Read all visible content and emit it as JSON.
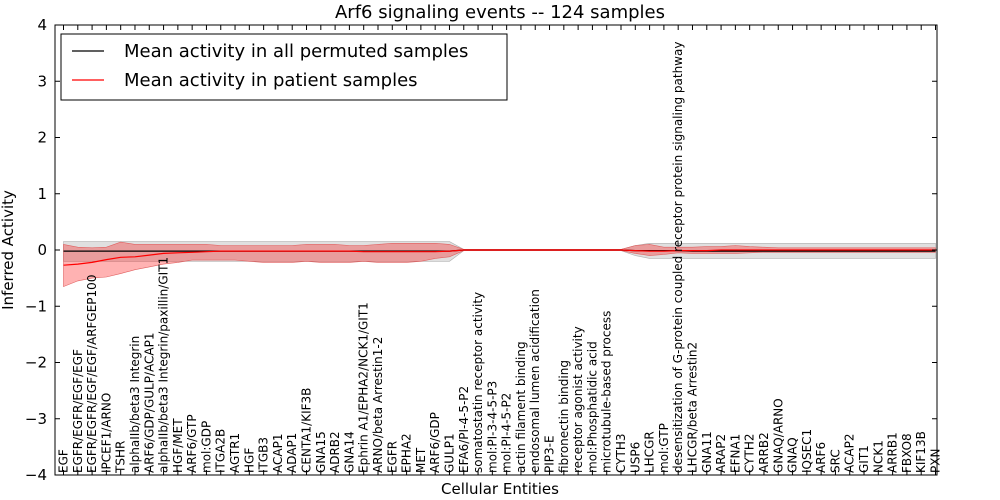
{
  "chart_data": {
    "type": "line",
    "title": "Arf6 signaling events -- 124 samples",
    "xlabel": "Cellular Entities",
    "ylabel": "Inferred Activity",
    "ylim": [
      -4,
      4
    ],
    "yticks": [
      -4,
      -3,
      -2,
      -1,
      0,
      1,
      2,
      3,
      4
    ],
    "ytick_labels": [
      "−4",
      "−3",
      "−2",
      "−1",
      "0",
      "1",
      "2",
      "3",
      "4"
    ],
    "grid": false,
    "legend_position": "top-left",
    "categories": [
      "EGF",
      "EGFR/EGFR/EGF/EGF",
      "EGFR/EGFR/EGF/EGF/ARFGEP100",
      "IPCEF1/ARNO",
      "TSHR",
      "alphaIIb/beta3 Integrin",
      "ARF6/GDP/GULP/ACAP1",
      "alphaIIb/beta3 Integrin/paxillin/GIT1",
      "HGF/MET",
      "ARF6/GTP",
      "mol:GDP",
      "ITGA2B",
      "AGTR1",
      "HGF",
      "ITGB3",
      "ACAP1",
      "ADAP1",
      "CENTA1/KIF3B",
      "GNA15",
      "ADRB2",
      "GNA14",
      "Ephrin A1/EPHA2/NCK1/GIT1",
      "ARNO/beta Arrestin1-2",
      "EGFR",
      "EPHA2",
      "MET",
      "ARF6/GDP",
      "GULP1",
      "EFA6/PI-4-5-P2",
      "somatostatin receptor activity",
      "mol:PI-3-4-5-P3",
      "mol:PI-4-5-P2",
      "actin filament binding",
      "endosomal lumen acidification",
      "PIP3-E",
      "fibronectin binding",
      "receptor agonist activity",
      "mol:Phosphatidic acid",
      "microtubule-based process",
      "CYTH3",
      "USP6",
      "LHCGR",
      "mol:GTP",
      "desensitization of G-protein coupled receptor protein signaling pathway",
      "LHCGR/beta Arrestin2",
      "GNA11",
      "ARAP2",
      "EFNA1",
      "CYTH2",
      "ARRB2",
      "GNAQ/ARNO",
      "GNAQ",
      "IQSEC1",
      "ARF6",
      "SRC",
      "ACAP2",
      "GIT1",
      "NCK1",
      "ARRB1",
      "FBXO8",
      "KIF13B",
      "PXN"
    ],
    "series": [
      {
        "name": "Mean activity in all permuted samples",
        "color": "#000000",
        "values": [
          -0.02,
          -0.02,
          -0.02,
          -0.02,
          -0.02,
          -0.02,
          -0.02,
          -0.02,
          -0.02,
          -0.02,
          -0.02,
          -0.02,
          -0.02,
          -0.02,
          -0.02,
          -0.02,
          -0.02,
          -0.02,
          -0.02,
          -0.02,
          -0.02,
          -0.02,
          -0.02,
          -0.02,
          -0.02,
          -0.02,
          -0.02,
          -0.02,
          0,
          0,
          0,
          0,
          0,
          0,
          0,
          0,
          0,
          0,
          0,
          0,
          -0.01,
          -0.01,
          -0.01,
          -0.01,
          -0.02,
          -0.02,
          -0.02,
          -0.02,
          -0.02,
          -0.02,
          -0.02,
          -0.02,
          -0.02,
          -0.02,
          -0.02,
          -0.02,
          -0.02,
          -0.02,
          -0.02,
          -0.02,
          -0.02,
          -0.02
        ],
        "band_upper": [
          0.15,
          0.15,
          0.15,
          0.15,
          0.15,
          0.15,
          0.15,
          0.15,
          0.15,
          0.15,
          0.15,
          0.15,
          0.15,
          0.15,
          0.15,
          0.15,
          0.15,
          0.15,
          0.15,
          0.15,
          0.15,
          0.15,
          0.15,
          0.15,
          0.15,
          0.15,
          0.15,
          0.15,
          0.01,
          0.01,
          0.01,
          0.01,
          0.01,
          0.01,
          0.01,
          0.01,
          0.01,
          0.01,
          0.01,
          0.01,
          0.08,
          0.12,
          0.12,
          0.12,
          0.12,
          0.12,
          0.12,
          0.12,
          0.12,
          0.12,
          0.12,
          0.12,
          0.12,
          0.12,
          0.12,
          0.12,
          0.12,
          0.12,
          0.12,
          0.12,
          0.12,
          0.12
        ],
        "band_lower": [
          -0.2,
          -0.2,
          -0.2,
          -0.2,
          -0.2,
          -0.2,
          -0.2,
          -0.2,
          -0.2,
          -0.2,
          -0.2,
          -0.2,
          -0.2,
          -0.2,
          -0.2,
          -0.2,
          -0.2,
          -0.2,
          -0.2,
          -0.2,
          -0.2,
          -0.2,
          -0.2,
          -0.2,
          -0.2,
          -0.2,
          -0.2,
          -0.2,
          -0.01,
          -0.01,
          -0.01,
          -0.01,
          -0.01,
          -0.01,
          -0.01,
          -0.01,
          -0.01,
          -0.01,
          -0.01,
          -0.01,
          -0.1,
          -0.15,
          -0.15,
          -0.15,
          -0.15,
          -0.15,
          -0.15,
          -0.15,
          -0.15,
          -0.15,
          -0.15,
          -0.15,
          -0.15,
          -0.15,
          -0.15,
          -0.15,
          -0.15,
          -0.15,
          -0.15,
          -0.15,
          -0.15,
          -0.15
        ]
      },
      {
        "name": "Mean activity in patient samples",
        "color": "#ff0000",
        "values": [
          -0.27,
          -0.25,
          -0.22,
          -0.17,
          -0.13,
          -0.12,
          -0.09,
          -0.06,
          -0.05,
          -0.04,
          -0.03,
          -0.02,
          -0.02,
          -0.02,
          -0.02,
          -0.02,
          -0.02,
          -0.02,
          -0.02,
          -0.02,
          -0.02,
          -0.03,
          -0.03,
          -0.03,
          -0.03,
          -0.03,
          -0.03,
          -0.02,
          0,
          0,
          0,
          0,
          0,
          0,
          0,
          0,
          0,
          0,
          0,
          0,
          -0.01,
          -0.02,
          -0.02,
          -0.01,
          -0.01,
          -0.01,
          0,
          0,
          0,
          0,
          0,
          0,
          0,
          0,
          0,
          0,
          0,
          0,
          0,
          0,
          0,
          0
        ],
        "band_upper": [
          0.1,
          0.05,
          0.04,
          0.05,
          0.14,
          0.1,
          0.1,
          0.1,
          0.1,
          0.1,
          0.1,
          0.08,
          0.08,
          0.08,
          0.08,
          0.08,
          0.08,
          0.1,
          0.1,
          0.1,
          0.08,
          0.08,
          0.1,
          0.12,
          0.12,
          0.12,
          0.12,
          0.1,
          0.01,
          0.01,
          0.01,
          0.01,
          0.01,
          0.01,
          0.01,
          0.01,
          0.01,
          0.01,
          0.01,
          0.01,
          0.08,
          0.1,
          0.05,
          0.05,
          0.05,
          0.06,
          0.06,
          0.08,
          0.06,
          0.05,
          0.04,
          0.04,
          0.04,
          0.04,
          0.04,
          0.04,
          0.04,
          0.04,
          0.04,
          0.04,
          0.04,
          0.04
        ],
        "band_lower": [
          -0.65,
          -0.55,
          -0.5,
          -0.48,
          -0.42,
          -0.35,
          -0.3,
          -0.25,
          -0.22,
          -0.18,
          -0.18,
          -0.18,
          -0.18,
          -0.2,
          -0.22,
          -0.22,
          -0.22,
          -0.2,
          -0.22,
          -0.22,
          -0.22,
          -0.2,
          -0.22,
          -0.22,
          -0.22,
          -0.2,
          -0.15,
          -0.12,
          -0.01,
          -0.01,
          -0.01,
          -0.01,
          -0.01,
          -0.01,
          -0.01,
          -0.01,
          -0.01,
          -0.01,
          -0.01,
          -0.01,
          -0.06,
          -0.1,
          -0.08,
          -0.05,
          -0.06,
          -0.06,
          -0.06,
          -0.06,
          -0.05,
          -0.04,
          -0.04,
          -0.04,
          -0.04,
          -0.04,
          -0.04,
          -0.04,
          -0.04,
          -0.04,
          -0.04,
          -0.04,
          -0.04,
          -0.04
        ]
      }
    ]
  }
}
